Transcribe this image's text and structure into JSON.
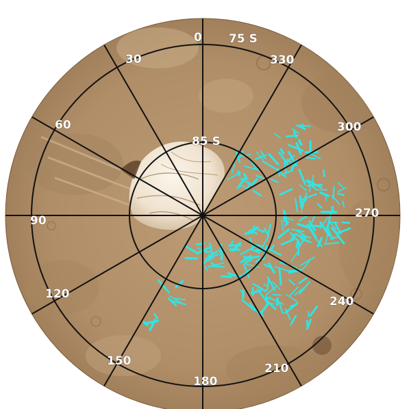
{
  "map": {
    "latitude_labels": {
      "outer": "75 S",
      "inner": "85 S"
    },
    "longitude_labels": [
      "0",
      "30",
      "60",
      "90",
      "120",
      "150",
      "180",
      "210",
      "240",
      "270",
      "300",
      "330"
    ],
    "colors": {
      "surface": "#b08e68",
      "polar_cap": "#f3e8d8",
      "grid_lines": "#111111",
      "feature_marks": "#2ee6e6",
      "label_text": "#ffffff"
    }
  }
}
